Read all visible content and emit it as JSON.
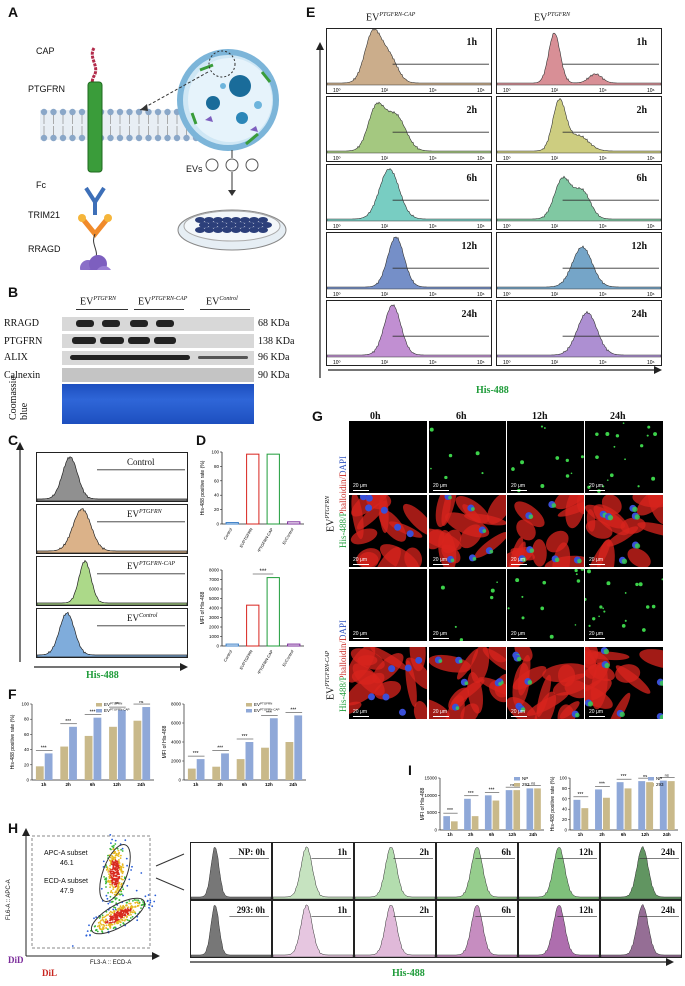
{
  "panels": {
    "A": "A",
    "B": "B",
    "C": "C",
    "D": "D",
    "E": "E",
    "F": "F",
    "G": "G",
    "H": "H",
    "I": "I"
  },
  "panelA": {
    "labels": {
      "cap": "CAP",
      "ptgfrn": "PTGFRN",
      "fc": "Fc",
      "trim21": "TRIM21",
      "rragd": "RRAGD",
      "evs": "EVs"
    }
  },
  "panelB": {
    "groups": [
      {
        "main": "EV",
        "sup": "PTGFRN"
      },
      {
        "main": "EV",
        "sup": "PTGFRN-CAP"
      },
      {
        "main": "EV",
        "sup": "Control"
      }
    ],
    "rows": [
      {
        "name": "RRAGD",
        "kda": "68 KDa"
      },
      {
        "name": "PTGFRN",
        "kda": "138 KDa"
      },
      {
        "name": "ALIX",
        "kda": "96 KDa"
      },
      {
        "name": "Calnexin",
        "kda": "90 KDa"
      }
    ],
    "coomassie": "Coomassie blue"
  },
  "panelC": {
    "histograms": [
      {
        "label_main": "Control",
        "label_sup": "",
        "color": "#555555"
      },
      {
        "label_main": "EV",
        "label_sup": "PTGFRN",
        "color": "#c8894a"
      },
      {
        "label_main": "EV",
        "label_sup": "PTGFRN-CAP",
        "color": "#7fc44a"
      },
      {
        "label_main": "EV",
        "label_sup": "Control",
        "color": "#3a7fc8"
      }
    ],
    "xlabel": "His-488"
  },
  "panelD": {
    "top": {
      "ylabel": "His-488 positive rate (%)",
      "yticks": [
        "0",
        "20",
        "40",
        "60",
        "80",
        "100"
      ]
    },
    "bottom": {
      "ylabel": "MFI of His-488",
      "yticks": [
        "0",
        "1000",
        "2000",
        "3000",
        "4000",
        "5000",
        "6000",
        "7000",
        "8000"
      ],
      "sig": "***"
    },
    "categories": [
      "Control",
      "EVPTGFRN",
      "EVPTGFRN-CAP",
      "EVControl"
    ]
  },
  "panelE": {
    "col_titles": [
      {
        "main": "EV",
        "sup": "PTGFRN-CAP"
      },
      {
        "main": "EV",
        "sup": "PTGFRN"
      }
    ],
    "times": [
      "1h",
      "2h",
      "6h",
      "12h",
      "24h"
    ],
    "xlabel": "His-488",
    "xticks": [
      "10⁰",
      "10²",
      "10⁴",
      "10⁶"
    ]
  },
  "panelF": {
    "left": {
      "ylabel": "His-488 positive rate (%)",
      "legend": [
        {
          "main": "EV",
          "sup": "PTGFRN"
        },
        {
          "main": "EV",
          "sup": "PTGFRN-CAP"
        }
      ],
      "sig": [
        "***",
        "***",
        "***",
        "**",
        "ns"
      ]
    },
    "right": {
      "ylabel": "MFI of His-488",
      "legend": [
        {
          "main": "EV",
          "sup": "PTGFRN"
        },
        {
          "main": "EV",
          "sup": "PTGFRN-CAP"
        }
      ],
      "sig": [
        "***",
        "***",
        "***",
        "***",
        "***"
      ]
    },
    "categories": [
      "1h",
      "2h",
      "6h",
      "12h",
      "24h"
    ]
  },
  "panelG": {
    "times": [
      "0h",
      "6h",
      "12h",
      "24h"
    ],
    "row_groups": [
      {
        "main": "EV",
        "sup": "PTGFRN"
      },
      {
        "main": "EV",
        "sup": "PTGFRN-CAP"
      }
    ],
    "stain": "His-488/Phalloidin/DAPI",
    "scale": "20 μm"
  },
  "panelH": {
    "gates": [
      {
        "name": "APC-A subset",
        "value": "46.1"
      },
      {
        "name": "ECD-A subset",
        "value": "47.9"
      }
    ],
    "ylabel": "FL6-A :: APC-A",
    "xlabel": "FL3-A :: ECD-A",
    "did": "DiD",
    "dil": "DiL",
    "hist_xlabel": "His-488",
    "rows": [
      {
        "times": [
          "NP: 0h",
          "1h",
          "2h",
          "6h",
          "12h",
          "24h"
        ]
      },
      {
        "times": [
          "293: 0h",
          "1h",
          "2h",
          "6h",
          "12h",
          "24h"
        ]
      }
    ]
  },
  "panelI": {
    "left": {
      "ylabel": "MFI of His-488",
      "sig": [
        "***",
        "***",
        "***",
        "ns",
        "ns"
      ]
    },
    "right": {
      "ylabel": "His-488 positive rate (%)",
      "sig": [
        "***",
        "***",
        "***",
        "ns",
        "ns"
      ]
    },
    "legend": [
      "NP",
      "293"
    ],
    "categories": [
      "1h",
      "2h",
      "6h",
      "12h",
      "24h"
    ]
  },
  "colors": {
    "flow_line": "#222222",
    "ev_ptgfrn_bar": "#c9b98a",
    "ev_cap_bar": "#8fa8d8",
    "np_bar": "#8fa8d8",
    "b293_bar": "#c9b98a",
    "green_stain": "#3cd24a",
    "red_stain": "#d8241e"
  }
}
